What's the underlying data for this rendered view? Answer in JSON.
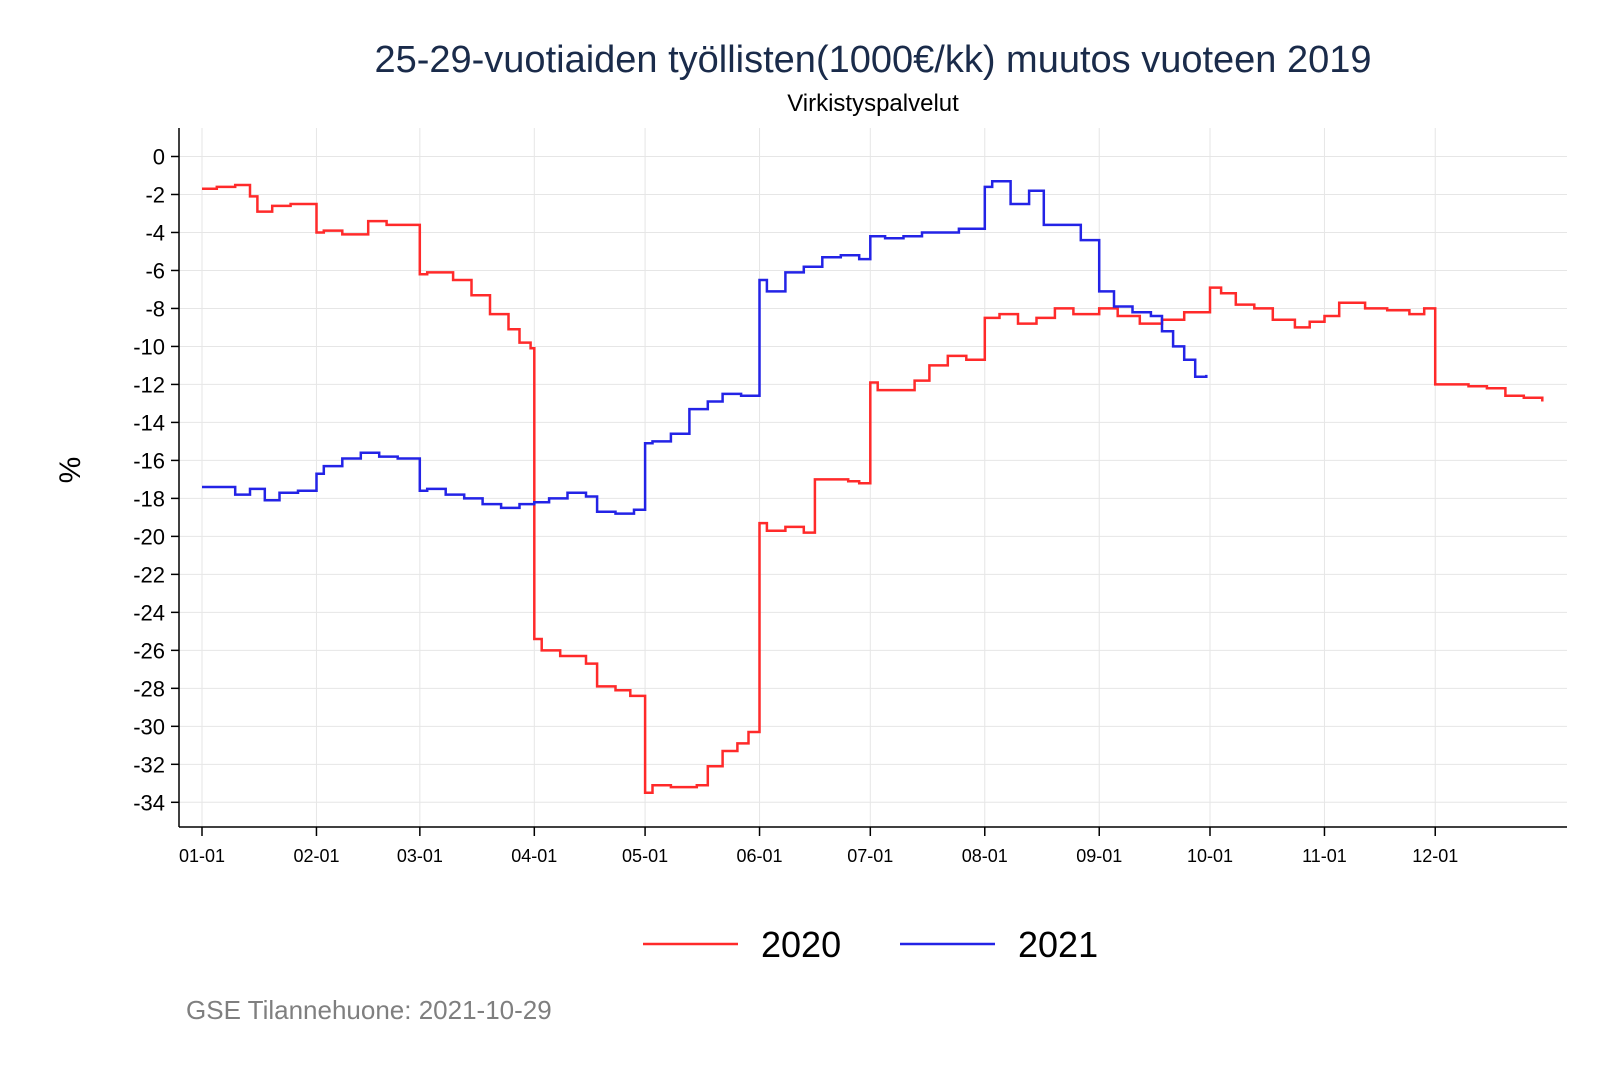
{
  "chart_data": {
    "type": "line",
    "title": "25-29-vuotiaiden työllisten(1000€/kk) muutos vuoteen 2019",
    "subtitle": "Virkistyspalvelut",
    "xlabel": "",
    "ylabel": "%",
    "ylim": [
      -35.3,
      1.5
    ],
    "y_ticks": [
      "0",
      "-2",
      "-4",
      "-6",
      "-8",
      "-10",
      "-12",
      "-14",
      "-16",
      "-18",
      "-20",
      "-22",
      "-24",
      "-26",
      "-28",
      "-30",
      "-32",
      "-34"
    ],
    "x_ticks": [
      "01-01",
      "02-01",
      "03-01",
      "04-01",
      "05-01",
      "06-01",
      "07-01",
      "08-01",
      "09-01",
      "10-01",
      "11-01",
      "12-01"
    ],
    "grid": true,
    "legend_position": "bottom",
    "line_style": "step",
    "series": [
      {
        "name": "2020",
        "color": "#ff2a2a",
        "x": [
          "01-01",
          "01-05",
          "01-10",
          "01-14",
          "01-16",
          "01-20",
          "01-25",
          "02-01",
          "02-03",
          "02-08",
          "02-15",
          "02-20",
          "02-25",
          "03-01",
          "03-03",
          "03-10",
          "03-15",
          "03-20",
          "03-25",
          "03-28",
          "03-31",
          "04-01",
          "04-03",
          "04-08",
          "04-15",
          "04-18",
          "04-23",
          "04-27",
          "05-01",
          "05-03",
          "05-08",
          "05-15",
          "05-18",
          "05-22",
          "05-26",
          "05-29",
          "06-01",
          "06-03",
          "06-08",
          "06-13",
          "06-16",
          "06-20",
          "06-25",
          "06-28",
          "07-01",
          "07-03",
          "07-08",
          "07-13",
          "07-17",
          "07-22",
          "07-27",
          "08-01",
          "08-05",
          "08-10",
          "08-15",
          "08-20",
          "08-25",
          "09-01",
          "09-06",
          "09-12",
          "09-18",
          "09-24",
          "10-01",
          "10-04",
          "10-08",
          "10-13",
          "10-18",
          "10-24",
          "10-28",
          "11-01",
          "11-05",
          "11-12",
          "11-18",
          "11-24",
          "11-28",
          "12-01",
          "12-05",
          "12-10",
          "12-15",
          "12-20",
          "12-25",
          "12-30"
        ],
        "y": [
          -1.7,
          -1.6,
          -1.5,
          -2.1,
          -2.9,
          -2.6,
          -2.5,
          -4.0,
          -3.9,
          -4.1,
          -3.4,
          -3.6,
          -3.6,
          -6.2,
          -6.1,
          -6.5,
          -7.3,
          -8.3,
          -9.1,
          -9.8,
          -10.1,
          -25.4,
          -26.0,
          -26.3,
          -26.7,
          -27.9,
          -28.1,
          -28.4,
          -33.5,
          -33.1,
          -33.2,
          -33.1,
          -32.1,
          -31.3,
          -30.9,
          -30.3,
          -19.3,
          -19.7,
          -19.5,
          -19.8,
          -17.0,
          -17.0,
          -17.1,
          -17.2,
          -11.9,
          -12.3,
          -12.3,
          -11.8,
          -11.0,
          -10.5,
          -10.7,
          -8.5,
          -8.3,
          -8.8,
          -8.5,
          -8.0,
          -8.3,
          -8.0,
          -8.4,
          -8.8,
          -8.6,
          -8.2,
          -6.9,
          -7.2,
          -7.8,
          -8.0,
          -8.6,
          -9.0,
          -8.7,
          -8.4,
          -7.7,
          -8.0,
          -8.1,
          -8.3,
          -8.0,
          -12.0,
          -12.0,
          -12.1,
          -12.2,
          -12.6,
          -12.7,
          -12.9
        ]
      },
      {
        "name": "2021",
        "color": "#2323e6",
        "x": [
          "01-01",
          "01-05",
          "01-10",
          "01-14",
          "01-18",
          "01-22",
          "01-27",
          "02-01",
          "02-03",
          "02-08",
          "02-13",
          "02-18",
          "02-23",
          "03-01",
          "03-03",
          "03-08",
          "03-13",
          "03-18",
          "03-23",
          "03-28",
          "04-01",
          "04-05",
          "04-10",
          "04-15",
          "04-18",
          "04-23",
          "04-28",
          "05-01",
          "05-03",
          "05-08",
          "05-13",
          "05-18",
          "05-22",
          "05-27",
          "06-01",
          "06-03",
          "06-08",
          "06-13",
          "06-18",
          "06-23",
          "06-28",
          "07-01",
          "07-05",
          "07-10",
          "07-15",
          "07-20",
          "07-25",
          "08-01",
          "08-03",
          "08-08",
          "08-13",
          "08-17",
          "08-21",
          "08-27",
          "09-01",
          "09-05",
          "09-10",
          "09-15",
          "09-18",
          "09-21",
          "09-24",
          "09-27",
          "09-30"
        ],
        "y": [
          -17.4,
          -17.4,
          -17.8,
          -17.5,
          -18.1,
          -17.7,
          -17.6,
          -16.7,
          -16.3,
          -15.9,
          -15.6,
          -15.8,
          -15.9,
          -17.6,
          -17.5,
          -17.8,
          -18.0,
          -18.3,
          -18.5,
          -18.3,
          -18.2,
          -18.0,
          -17.7,
          -17.9,
          -18.7,
          -18.8,
          -18.6,
          -15.1,
          -15.0,
          -14.6,
          -13.3,
          -12.9,
          -12.5,
          -12.6,
          -6.5,
          -7.1,
          -6.1,
          -5.8,
          -5.3,
          -5.2,
          -5.4,
          -4.2,
          -4.3,
          -4.2,
          -4.0,
          -4.0,
          -3.8,
          -1.6,
          -1.3,
          -2.5,
          -1.8,
          -3.6,
          -3.6,
          -4.4,
          -7.1,
          -7.9,
          -8.2,
          -8.4,
          -9.2,
          -10.0,
          -10.7,
          -11.6,
          -11.5
        ]
      }
    ]
  },
  "legend": [
    {
      "label": "2020",
      "color": "#ff2a2a"
    },
    {
      "label": "2021",
      "color": "#2323e6"
    }
  ],
  "caption": "GSE Tilannehuone: 2021-10-29"
}
